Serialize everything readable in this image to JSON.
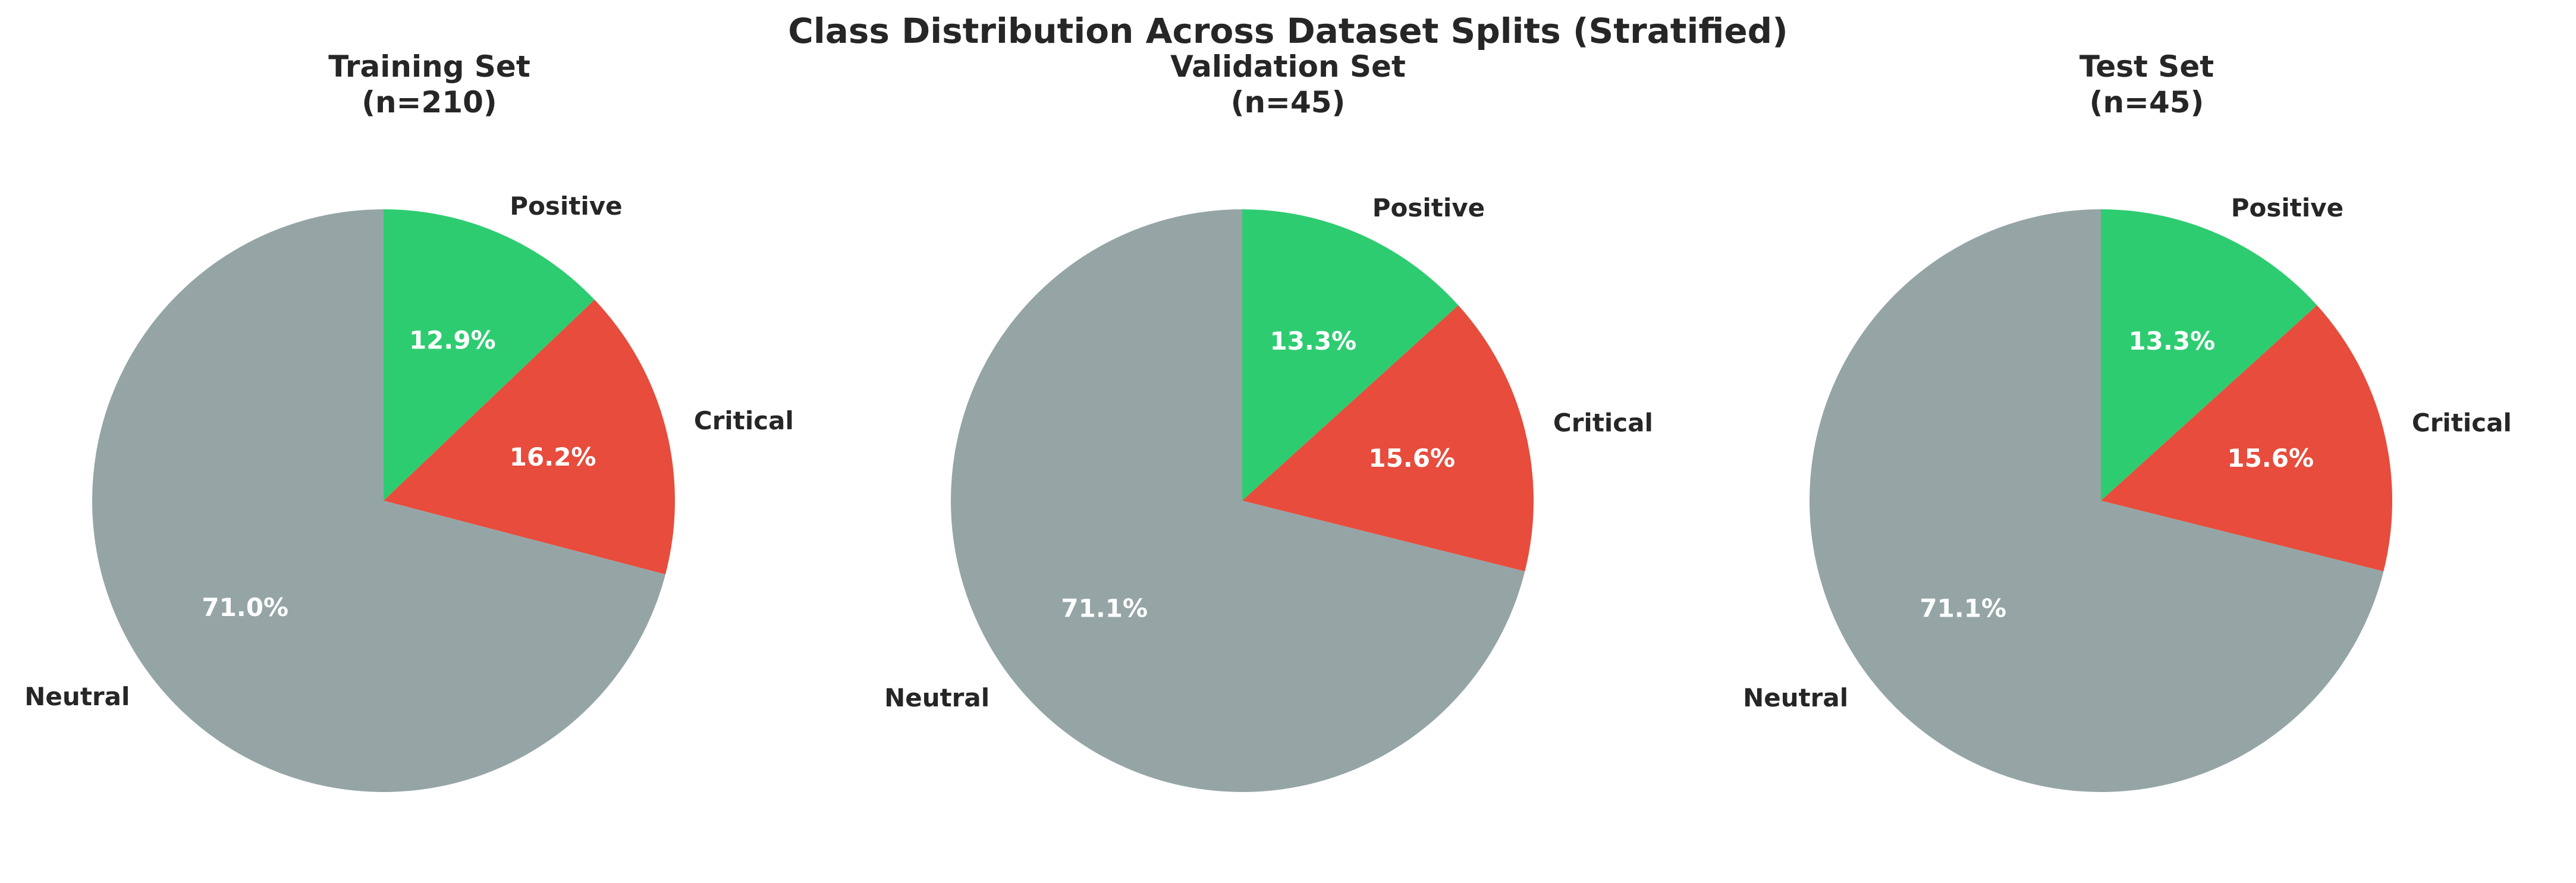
{
  "suptitle": "Class Distribution Across Dataset Splits (Stratified)",
  "chart_data": [
    {
      "type": "pie",
      "title": "Training Set",
      "subtitle": "(n=210)",
      "labels": [
        "Positive",
        "Critical",
        "Neutral"
      ],
      "values": [
        12.9,
        16.2,
        71.0
      ],
      "value_labels": [
        "12.9%",
        "16.2%",
        "71.0%"
      ],
      "colors": [
        "#2ecc71",
        "#e74c3c",
        "#95a5a6"
      ],
      "start_angle_deg": 90,
      "direction": "clockwise"
    },
    {
      "type": "pie",
      "title": "Validation Set",
      "subtitle": "(n=45)",
      "labels": [
        "Positive",
        "Critical",
        "Neutral"
      ],
      "values": [
        13.3,
        15.6,
        71.1
      ],
      "value_labels": [
        "13.3%",
        "15.6%",
        "71.1%"
      ],
      "colors": [
        "#2ecc71",
        "#e74c3c",
        "#95a5a6"
      ],
      "start_angle_deg": 90,
      "direction": "clockwise"
    },
    {
      "type": "pie",
      "title": "Test Set",
      "subtitle": "(n=45)",
      "labels": [
        "Positive",
        "Critical",
        "Neutral"
      ],
      "values": [
        13.3,
        15.6,
        71.1
      ],
      "value_labels": [
        "13.3%",
        "15.6%",
        "71.1%"
      ],
      "colors": [
        "#2ecc71",
        "#e74c3c",
        "#95a5a6"
      ],
      "start_angle_deg": 90,
      "direction": "clockwise"
    }
  ]
}
